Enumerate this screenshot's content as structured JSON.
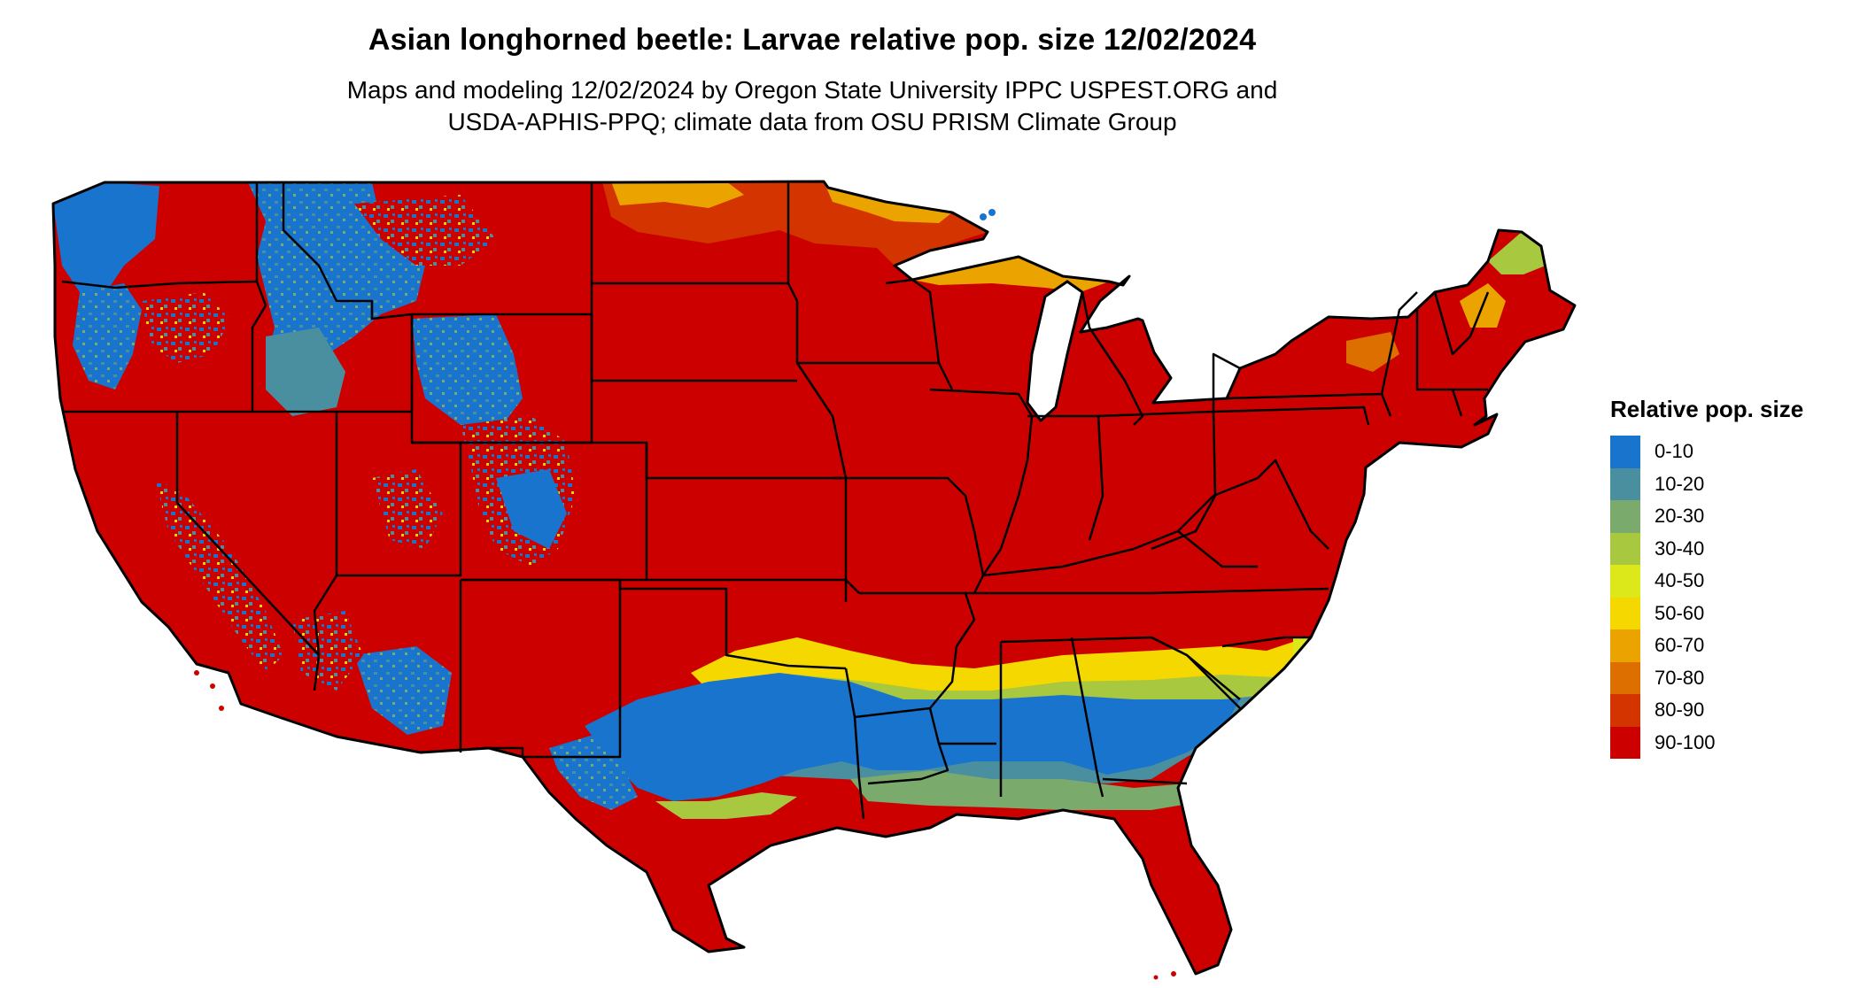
{
  "title": "Asian longhorned beetle: Larvae relative pop. size 12/02/2024",
  "subtitle": [
    "Maps and modeling 12/02/2024 by Oregon State University IPPC USPEST.ORG and",
    "USDA-APHIS-PPQ; climate data from OSU PRISM Climate Group"
  ],
  "legend": {
    "title": "Relative pop. size",
    "items": [
      {
        "label": "0-10",
        "color": "#1874CD"
      },
      {
        "label": "10-20",
        "color": "#4A8FA0"
      },
      {
        "label": "20-30",
        "color": "#7AAA6C"
      },
      {
        "label": "30-40",
        "color": "#A8C840"
      },
      {
        "label": "40-50",
        "color": "#DDE81A"
      },
      {
        "label": "50-60",
        "color": "#F5D800"
      },
      {
        "label": "60-70",
        "color": "#EBA300"
      },
      {
        "label": "70-80",
        "color": "#DD6E00"
      },
      {
        "label": "80-90",
        "color": "#D43500"
      },
      {
        "label": "90-100",
        "color": "#CD0000"
      }
    ]
  },
  "map": {
    "region": "Contiguous United States",
    "base_class": "90-100"
  }
}
